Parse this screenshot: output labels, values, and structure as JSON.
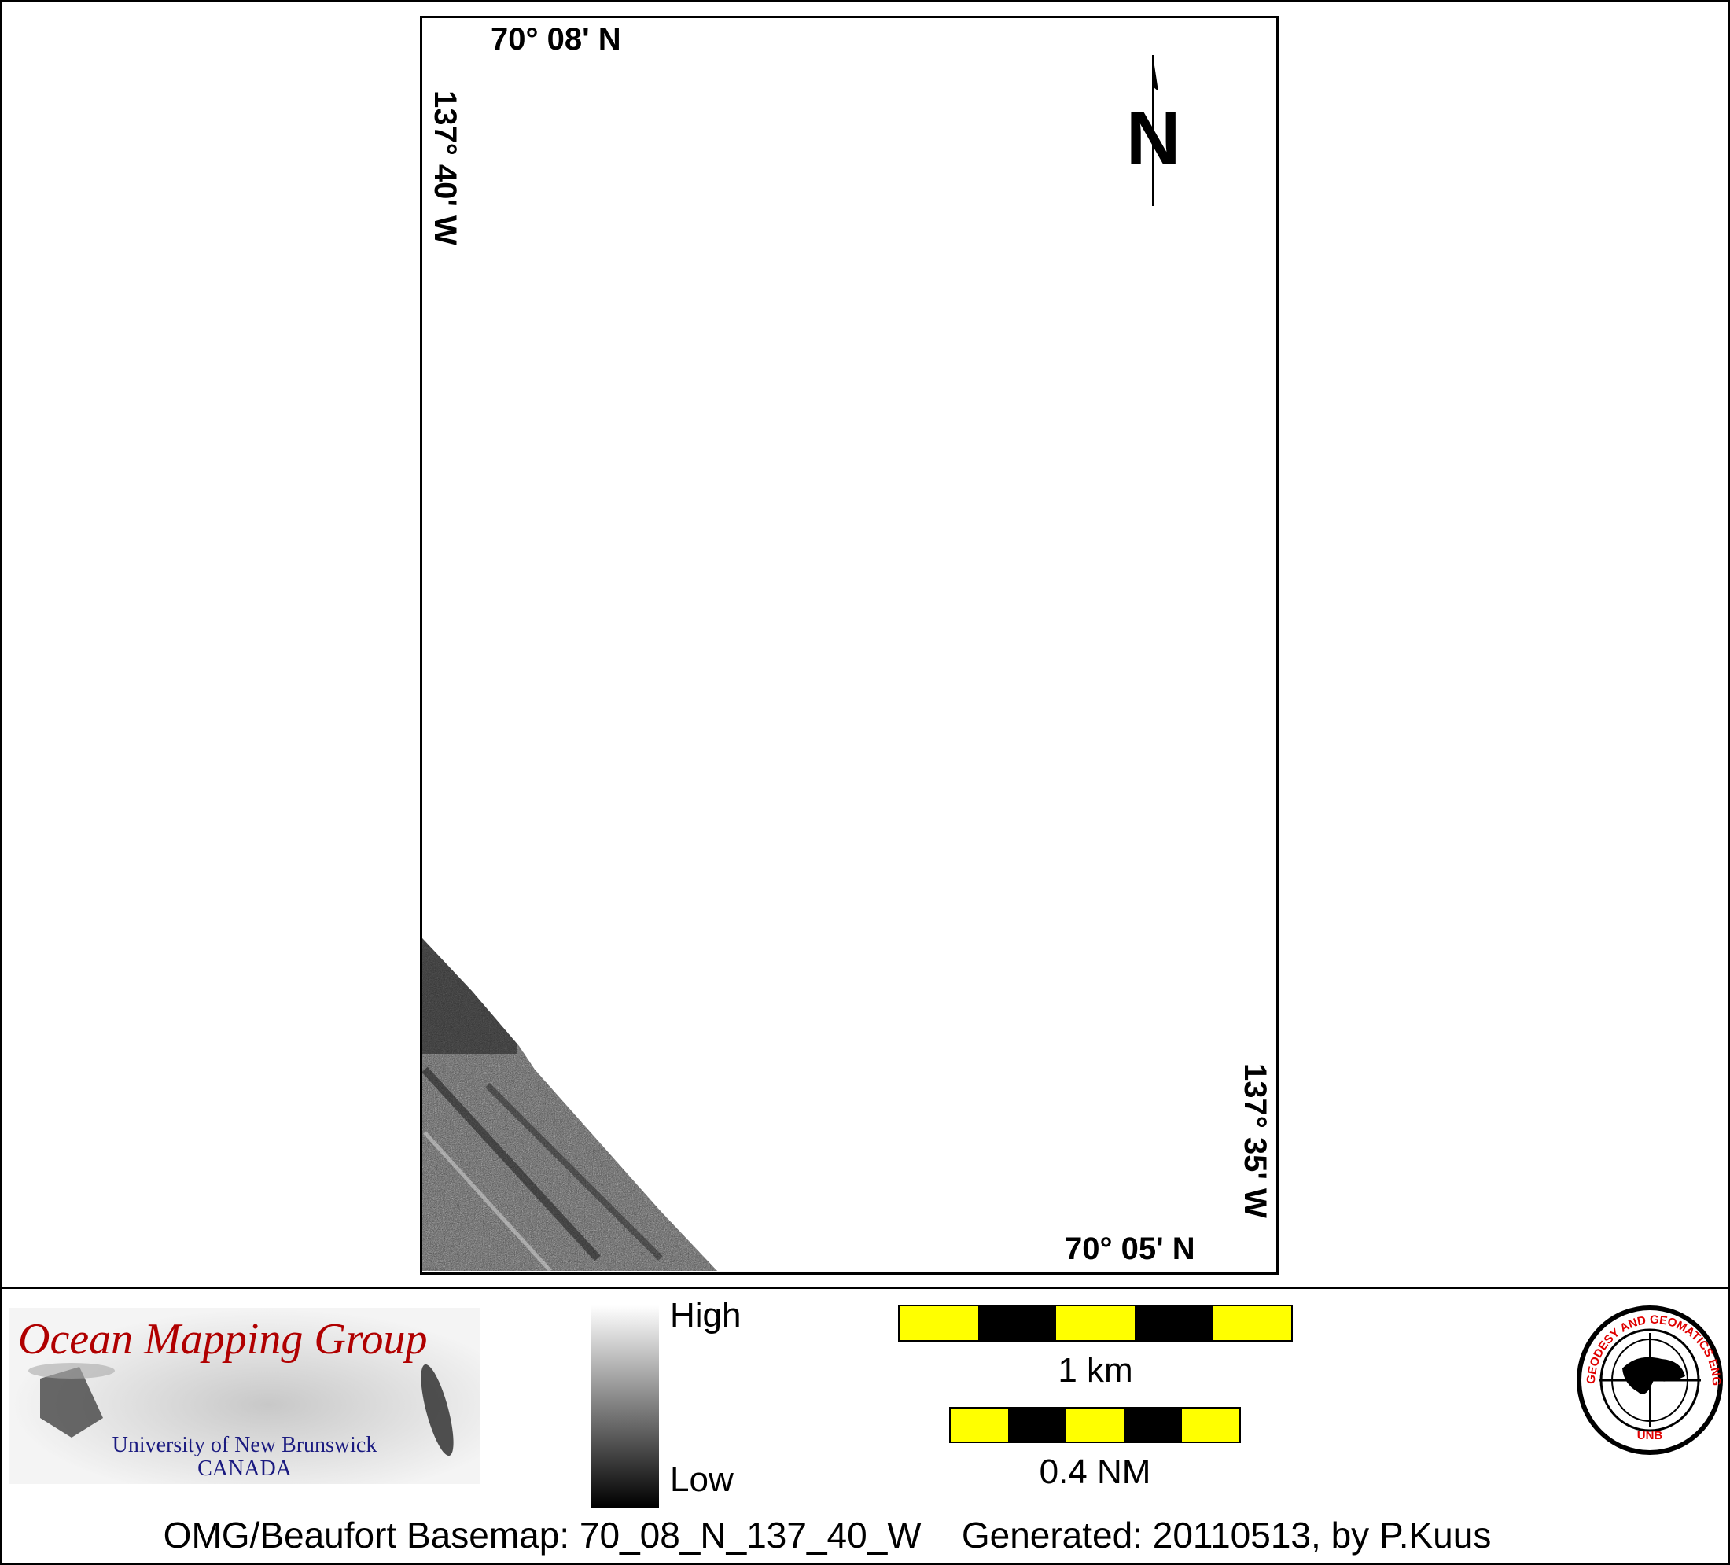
{
  "map": {
    "top_left_lat": "70° 08' N",
    "top_left_lon": "137° 40' W",
    "bottom_right_lat": "70° 05' N",
    "bottom_right_lon": "137° 35' W",
    "north_label": "N"
  },
  "legend": {
    "logo_title": "Ocean Mapping Group",
    "logo_line1": "University of New Brunswick",
    "logo_line2": "CANADA",
    "colorbar_high": "High",
    "colorbar_low": "Low",
    "scale_km": "1 km",
    "scale_nm": "0.4 NM",
    "unb_logo_text": "GEODESY AND GEOMATICS ENGINEERING UNB",
    "scale_colors": [
      "#ffff00",
      "#000000"
    ]
  },
  "footer": {
    "basemap": "OMG/Beaufort Basemap: 70_08_N_137_40_W",
    "generated": "Generated: 20110513, by P.Kuus"
  }
}
